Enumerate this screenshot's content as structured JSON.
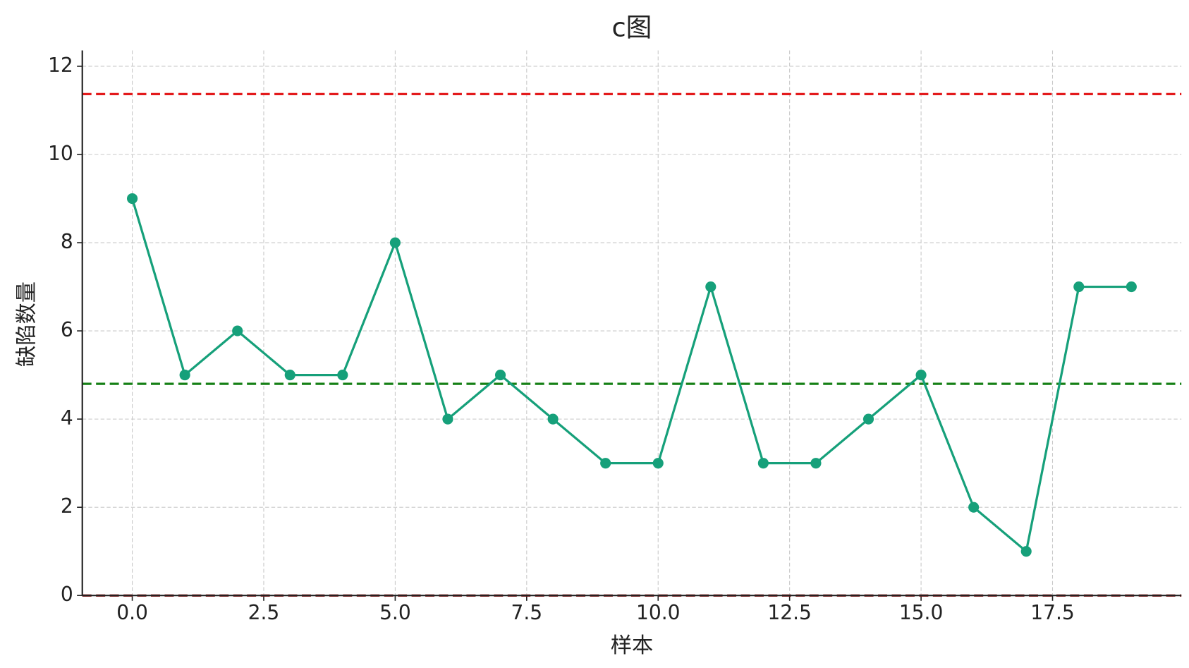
{
  "chart_data": {
    "type": "line",
    "title": "c图",
    "xlabel": "样本",
    "ylabel": "缺陷数量",
    "x": [
      0,
      1,
      2,
      3,
      4,
      5,
      6,
      7,
      8,
      9,
      10,
      11,
      12,
      13,
      14,
      15,
      16,
      17,
      18,
      19
    ],
    "series": [
      {
        "color": "#16a07a",
        "values": [
          9,
          5,
          6,
          5,
          5,
          8,
          4,
          5,
          4,
          3,
          3,
          7,
          3,
          3,
          4,
          5,
          2,
          1,
          7,
          7
        ]
      }
    ],
    "reference_lines": [
      {
        "value": 11.37,
        "color": "#e31a1c"
      },
      {
        "value": 4.8,
        "color": "#168016"
      },
      {
        "value": 0,
        "color": "#8b1a1a"
      }
    ],
    "xlim": [
      -0.95,
      19.95
    ],
    "xticks": [
      {
        "value": 0,
        "label": "0.0"
      },
      2.5,
      {
        "value": 5,
        "label": "5.0"
      },
      7.5,
      {
        "value": 10,
        "label": "10.0"
      },
      12.5,
      {
        "value": 15,
        "label": "15.0"
      },
      17.5
    ],
    "ylim": [
      0,
      12.36
    ],
    "yticks": [
      0,
      2,
      4,
      6,
      8,
      10,
      12
    ],
    "grid": true
  }
}
